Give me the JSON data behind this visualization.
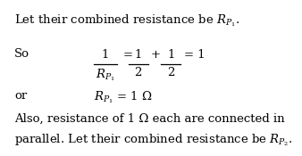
{
  "background_color": "#ffffff",
  "text_color": "#000000",
  "fontsize": 9.5,
  "line1": "Let their combined resistance be $R_{P_1}$.",
  "so": "So",
  "or": "or",
  "rp1_eq": "$R_{P_1}$ = 1 Ω",
  "also1": "Also, resistance of 1 Ω each are connected in",
  "also2": "parallel. Let their combined resistance be $R_{P_2}$.",
  "frac_num1": "1",
  "frac_den1": "$R_{P_1}$",
  "eq1": "=",
  "frac_num2": "1",
  "frac_den2": "2",
  "plus": "+",
  "frac_num3": "1",
  "frac_den3": "2",
  "eq2": "= 1"
}
